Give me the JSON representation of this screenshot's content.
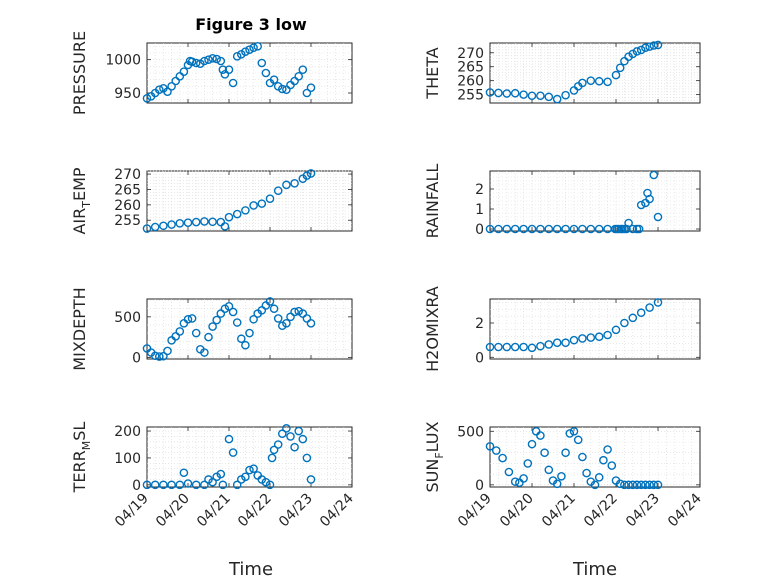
{
  "figure_title": "Figure 3 low",
  "colors": {
    "series": "#0072bd",
    "axis": "#262626",
    "grid": "#dadada"
  },
  "chart_data": [
    {
      "type": "scatter",
      "ylabel": "PRESSURE",
      "ylabel_sub": "",
      "ylabel_suffix": "",
      "ylim": [
        935,
        1025
      ],
      "yticks": [
        950,
        1000
      ],
      "x": [
        0,
        0.1,
        0.2,
        0.3,
        0.4,
        0.5,
        0.6,
        0.7,
        0.8,
        0.9,
        1.0,
        1.05,
        1.1,
        1.2,
        1.3,
        1.4,
        1.5,
        1.6,
        1.7,
        1.8,
        1.85,
        1.9,
        2.0,
        2.1,
        2.2,
        2.3,
        2.4,
        2.5,
        2.6,
        2.7,
        2.8,
        2.9,
        3.0,
        3.1,
        3.2,
        3.3,
        3.4,
        3.5,
        3.6,
        3.7,
        3.8,
        3.9,
        4.0
      ],
      "y": [
        942,
        945,
        950,
        955,
        957,
        952,
        960,
        968,
        975,
        982,
        992,
        998,
        997,
        995,
        994,
        998,
        1000,
        1002,
        1001,
        998,
        985,
        978,
        985,
        965,
        1005,
        1008,
        1012,
        1015,
        1018,
        1020,
        995,
        980,
        965,
        970,
        960,
        956,
        955,
        962,
        968,
        975,
        985,
        950,
        958
      ]
    },
    {
      "type": "scatter",
      "ylabel": "THETA",
      "ylabel_sub": "",
      "ylabel_suffix": "",
      "ylim": [
        252,
        273.5
      ],
      "yticks": [
        255,
        260,
        265,
        270
      ],
      "x": [
        0,
        0.2,
        0.4,
        0.6,
        0.8,
        1.0,
        1.2,
        1.4,
        1.6,
        1.8,
        2.0,
        2.1,
        2.2,
        2.4,
        2.6,
        2.8,
        3.0,
        3.1,
        3.2,
        3.3,
        3.4,
        3.5,
        3.6,
        3.7,
        3.8,
        3.9,
        4.0
      ],
      "y": [
        255.8,
        255.6,
        255.4,
        255.5,
        255.0,
        254.6,
        254.6,
        254.2,
        253.4,
        254.8,
        256.5,
        258.0,
        259.2,
        260.0,
        259.8,
        259.6,
        262.0,
        264.6,
        267.0,
        268.6,
        269.6,
        270.5,
        271.0,
        271.8,
        272.2,
        272.6,
        272.8
      ]
    },
    {
      "type": "scatter",
      "ylabel": "AIR",
      "ylabel_sub": "T",
      "ylabel_suffix": "EMP",
      "ylim": [
        251.5,
        271
      ],
      "yticks": [
        255,
        260,
        265,
        270
      ],
      "x": [
        0,
        0.2,
        0.4,
        0.6,
        0.8,
        1.0,
        1.2,
        1.4,
        1.6,
        1.8,
        1.9,
        2.0,
        2.2,
        2.4,
        2.6,
        2.8,
        3.0,
        3.2,
        3.4,
        3.6,
        3.8,
        3.9,
        4.0
      ],
      "y": [
        252.3,
        252.8,
        253.2,
        253.6,
        254.0,
        254.2,
        254.4,
        254.6,
        254.5,
        254.4,
        253.0,
        256.0,
        257.0,
        258.2,
        259.8,
        260.4,
        262.0,
        264.6,
        266.5,
        267.0,
        268.5,
        269.5,
        270.2
      ]
    },
    {
      "type": "scatter",
      "ylabel": "RAINFALL",
      "ylabel_sub": "",
      "ylabel_suffix": "",
      "ylim": [
        -0.1,
        2.9
      ],
      "yticks": [
        0,
        1,
        2
      ],
      "x": [
        0,
        0.2,
        0.4,
        0.6,
        0.8,
        1.0,
        1.2,
        1.4,
        1.6,
        1.8,
        2.0,
        2.2,
        2.4,
        2.6,
        2.8,
        2.98,
        3.02,
        3.06,
        3.12,
        3.15,
        3.2,
        3.25,
        3.3,
        3.4,
        3.5,
        3.55,
        3.6,
        3.7,
        3.75,
        3.8,
        3.9,
        4.0
      ],
      "y": [
        0,
        0,
        0,
        0,
        0,
        0,
        0,
        0,
        0,
        0,
        0,
        0,
        0,
        0,
        0,
        0,
        0,
        0,
        0,
        0,
        0,
        0,
        0.3,
        0,
        0,
        0,
        1.2,
        1.3,
        1.8,
        1.5,
        2.7,
        0.6
      ]
    },
    {
      "type": "scatter",
      "ylabel": "MIXDEPTH",
      "ylabel_sub": "",
      "ylabel_suffix": "",
      "ylim": [
        -20,
        720
      ],
      "yticks": [
        0,
        500
      ],
      "x": [
        0,
        0.1,
        0.2,
        0.3,
        0.4,
        0.5,
        0.6,
        0.7,
        0.8,
        0.9,
        1.0,
        1.1,
        1.2,
        1.3,
        1.4,
        1.5,
        1.6,
        1.7,
        1.8,
        1.9,
        2.0,
        2.1,
        2.2,
        2.3,
        2.4,
        2.5,
        2.6,
        2.7,
        2.8,
        2.9,
        3.0,
        3.1,
        3.2,
        3.3,
        3.4,
        3.5,
        3.6,
        3.7,
        3.8,
        3.9,
        4.0
      ],
      "y": [
        110,
        60,
        20,
        10,
        15,
        80,
        210,
        260,
        320,
        420,
        470,
        480,
        300,
        100,
        60,
        250,
        380,
        460,
        540,
        600,
        630,
        560,
        430,
        230,
        150,
        300,
        470,
        540,
        580,
        640,
        690,
        600,
        480,
        390,
        420,
        500,
        560,
        570,
        540,
        480,
        420
      ]
    },
    {
      "type": "scatter",
      "ylabel": "H2OMIXRA",
      "ylabel_sub": "",
      "ylabel_suffix": "",
      "ylim": [
        -0.1,
        3.4
      ],
      "yticks": [
        0,
        2
      ],
      "x": [
        0,
        0.2,
        0.4,
        0.6,
        0.8,
        1.0,
        1.2,
        1.4,
        1.6,
        1.8,
        2.0,
        2.2,
        2.4,
        2.6,
        2.8,
        3.0,
        3.2,
        3.4,
        3.6,
        3.8,
        4.0
      ],
      "y": [
        0.6,
        0.6,
        0.6,
        0.6,
        0.6,
        0.55,
        0.65,
        0.75,
        0.85,
        0.85,
        1.0,
        1.1,
        1.15,
        1.2,
        1.3,
        1.6,
        2.0,
        2.3,
        2.6,
        2.9,
        3.2
      ]
    },
    {
      "type": "scatter",
      "ylabel": "TERR",
      "ylabel_sub": "M",
      "ylabel_suffix": "SL",
      "ylim": [
        -8,
        215
      ],
      "yticks": [
        0,
        100,
        200
      ],
      "x": [
        0,
        0.2,
        0.4,
        0.6,
        0.8,
        0.9,
        1.0,
        1.2,
        1.4,
        1.5,
        1.6,
        1.7,
        1.8,
        1.85,
        2.0,
        2.1,
        2.2,
        2.3,
        2.4,
        2.5,
        2.6,
        2.7,
        2.8,
        2.9,
        3.0,
        3.05,
        3.1,
        3.2,
        3.3,
        3.4,
        3.5,
        3.6,
        3.7,
        3.8,
        3.9,
        4.0
      ],
      "y": [
        0,
        0,
        0,
        0,
        0,
        45,
        5,
        0,
        0,
        20,
        10,
        30,
        40,
        0,
        170,
        120,
        0,
        20,
        30,
        55,
        60,
        35,
        20,
        10,
        0,
        100,
        130,
        150,
        190,
        210,
        180,
        140,
        200,
        170,
        100,
        20
      ]
    },
    {
      "type": "scatter",
      "ylabel": "SUN",
      "ylabel_sub": "F",
      "ylabel_suffix": "LUX",
      "ylim": [
        -20,
        540
      ],
      "yticks": [
        0,
        500
      ],
      "x": [
        0,
        0.15,
        0.3,
        0.45,
        0.6,
        0.7,
        0.8,
        0.9,
        1.0,
        1.1,
        1.2,
        1.3,
        1.4,
        1.5,
        1.6,
        1.7,
        1.8,
        1.9,
        2.0,
        2.1,
        2.2,
        2.3,
        2.4,
        2.5,
        2.6,
        2.7,
        2.8,
        2.9,
        3.0,
        3.1,
        3.2,
        3.3,
        3.4,
        3.5,
        3.6,
        3.7,
        3.8,
        3.9,
        4.0
      ],
      "y": [
        360,
        320,
        250,
        120,
        30,
        20,
        60,
        200,
        380,
        500,
        460,
        300,
        140,
        40,
        10,
        80,
        300,
        480,
        500,
        420,
        260,
        110,
        30,
        0,
        70,
        230,
        330,
        180,
        40,
        10,
        0,
        0,
        0,
        0,
        0,
        0,
        0,
        0,
        0
      ]
    }
  ],
  "x_axis": {
    "lim": [
      0,
      5
    ],
    "ticks": [
      0,
      1,
      2,
      3,
      4,
      5
    ],
    "tick_labels": [
      "04/19",
      "04/20",
      "04/21",
      "04/22",
      "04/23",
      "04/24"
    ],
    "label": "Time"
  }
}
